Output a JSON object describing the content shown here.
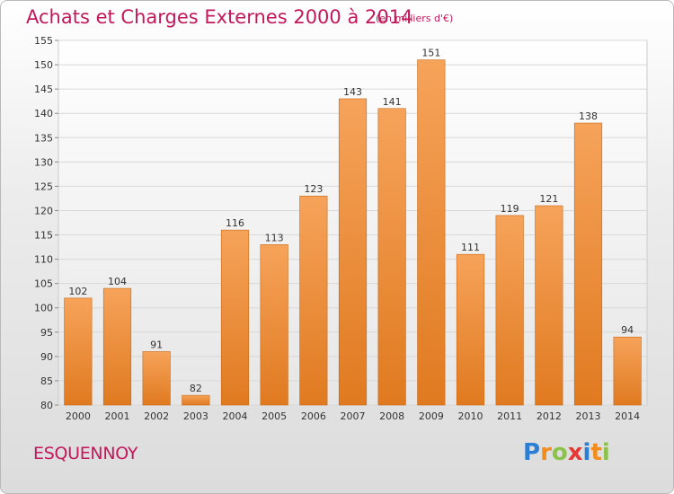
{
  "header": {
    "title": "Achats et Charges Externes 2000 à 2014",
    "subtitle": "(en milliers d'€)"
  },
  "footer": {
    "place": "ESQUENNOY",
    "logo_letters": [
      {
        "ch": "P",
        "color": "#2a7fd4"
      },
      {
        "ch": "r",
        "color": "#f28c1c"
      },
      {
        "ch": "o",
        "color": "#8bc34a"
      },
      {
        "ch": "x",
        "color": "#e53935"
      },
      {
        "ch": "i",
        "color": "#2a7fd4"
      },
      {
        "ch": "t",
        "color": "#f28c1c"
      },
      {
        "ch": "i",
        "color": "#8bc34a"
      }
    ]
  },
  "colors": {
    "bar_top": "#f6a35a",
    "bar_bottom": "#e07a20",
    "bar_edge": "#c96a18",
    "text_accent": "#c2185b"
  },
  "chart_data": {
    "type": "bar",
    "title": "Achats et Charges Externes 2000 à 2014",
    "subtitle": "(en milliers d'€)",
    "categories": [
      "2000",
      "2001",
      "2002",
      "2003",
      "2004",
      "2005",
      "2006",
      "2007",
      "2008",
      "2009",
      "2010",
      "2011",
      "2012",
      "2013",
      "2014"
    ],
    "values": [
      102,
      104,
      91,
      82,
      116,
      113,
      123,
      143,
      141,
      151,
      111,
      119,
      121,
      138,
      94
    ],
    "ylim": [
      80,
      155
    ],
    "yticks": [
      80,
      85,
      90,
      95,
      100,
      105,
      110,
      115,
      120,
      125,
      130,
      135,
      140,
      145,
      150,
      155
    ],
    "grid": true,
    "data_labels": true
  }
}
